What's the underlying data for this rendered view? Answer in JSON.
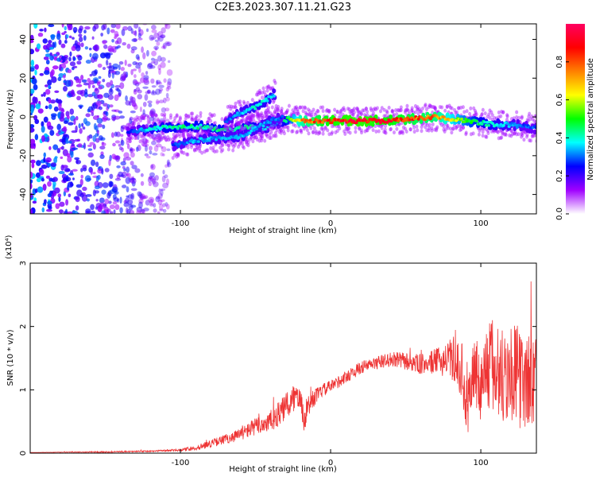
{
  "title": "C2E3.2023.307.11.21.G23",
  "chart_data": [
    {
      "type": "heatmap",
      "xlabel": "Height of straight line (km)",
      "ylabel": "Frequency (Hz)",
      "xlim": [
        -200,
        137
      ],
      "ylim": [
        -50,
        48
      ],
      "xticks": [
        -100,
        0,
        100
      ],
      "yticks": [
        -40,
        -20,
        0,
        20,
        40
      ],
      "grid": false,
      "colorbar": {
        "label": "Normalized spectral amplitude",
        "range": [
          0,
          1
        ],
        "ticks": [
          0.0,
          0.2,
          0.4,
          0.6,
          0.8
        ],
        "tick_labels": [
          "0.0",
          "0.2",
          "0.4",
          "0.6",
          "0.8"
        ],
        "colormap": [
          "#ffffff",
          "#a000ff",
          "#0000ff",
          "#00ffff",
          "#00ff00",
          "#ffff00",
          "#ff8000",
          "#ff0000",
          "#ff0060"
        ]
      },
      "noise_region_x": [
        -200,
        -107
      ],
      "traces": [
        {
          "points": [
            [
              -135,
              -8
            ],
            [
              -120,
              -6
            ],
            [
              -100,
              -5
            ],
            [
              -85,
              -5
            ],
            [
              -70,
              -7
            ],
            [
              -55,
              -5
            ],
            [
              -45,
              -6
            ],
            [
              -35,
              -3
            ],
            [
              -28,
              -1
            ],
            [
              -20,
              -2
            ],
            [
              0,
              -2
            ],
            [
              20,
              -2
            ],
            [
              40,
              -2
            ],
            [
              55,
              -1
            ],
            [
              70,
              0
            ],
            [
              90,
              -2
            ],
            [
              100,
              -3
            ],
            [
              110,
              -4
            ],
            [
              120,
              -4
            ],
            [
              130,
              -5
            ],
            [
              137,
              -6
            ]
          ],
          "amplitude": [
            0.25,
            0.4,
            0.45,
            0.45,
            0.45,
            0.45,
            0.4,
            0.35,
            0.5,
            0.75,
            0.92,
            0.95,
            0.9,
            0.85,
            0.8,
            0.55,
            0.45,
            0.4,
            0.35,
            0.3,
            0.3
          ]
        },
        {
          "points": [
            [
              -70,
              -2
            ],
            [
              -60,
              2
            ],
            [
              -50,
              5
            ],
            [
              -42,
              9
            ],
            [
              -37,
              12
            ]
          ],
          "amplitude": [
            0.3,
            0.35,
            0.4,
            0.4,
            0.35
          ]
        },
        {
          "points": [
            [
              -105,
              -15
            ],
            [
              -90,
              -12
            ],
            [
              -75,
              -11
            ],
            [
              -60,
              -10
            ],
            [
              -50,
              -6
            ],
            [
              -40,
              -2
            ],
            [
              -32,
              0
            ]
          ],
          "amplitude": [
            0.3,
            0.35,
            0.35,
            0.35,
            0.35,
            0.35,
            0.3
          ]
        }
      ]
    },
    {
      "type": "line",
      "xlabel": "Height of straight line (km)",
      "ylabel": "SNR (10 * v/v)",
      "y_multiplier": "(x10⁴)",
      "xlim": [
        -200,
        137
      ],
      "ylim": [
        0,
        3
      ],
      "xticks": [
        -100,
        0,
        100
      ],
      "yticks": [
        0,
        1,
        2,
        3
      ],
      "grid": false,
      "color": "#ee3333",
      "series": [
        {
          "x": [
            -200,
            -150,
            -120,
            -100,
            -90,
            -80,
            -70,
            -60,
            -50,
            -40,
            -33,
            -25,
            -20,
            -18,
            -15,
            -10,
            -5,
            0,
            10,
            20,
            30,
            40,
            50,
            60,
            70,
            80,
            88,
            90,
            95,
            100,
            105,
            110,
            115,
            120,
            125,
            130,
            137
          ],
          "y": [
            0.01,
            0.02,
            0.03,
            0.05,
            0.08,
            0.15,
            0.22,
            0.3,
            0.42,
            0.5,
            0.65,
            0.85,
            1.0,
            0.5,
            0.75,
            0.9,
            1.0,
            1.05,
            1.2,
            1.35,
            1.42,
            1.48,
            1.45,
            1.4,
            1.45,
            1.48,
            1.3,
            0.6,
            1.3,
            1.1,
            1.4,
            1.3,
            1.2,
            1.3,
            1.2,
            1.1,
            1.2
          ],
          "spread": [
            0,
            0.01,
            0.01,
            0.02,
            0.04,
            0.06,
            0.08,
            0.1,
            0.14,
            0.18,
            0.2,
            0.25,
            0.28,
            0.2,
            0.2,
            0.12,
            0.1,
            0.1,
            0.1,
            0.1,
            0.1,
            0.12,
            0.14,
            0.16,
            0.2,
            0.3,
            0.45,
            0.5,
            0.55,
            0.6,
            0.75,
            0.85,
            0.8,
            0.8,
            0.8,
            0.75,
            0.75
          ]
        }
      ]
    }
  ]
}
